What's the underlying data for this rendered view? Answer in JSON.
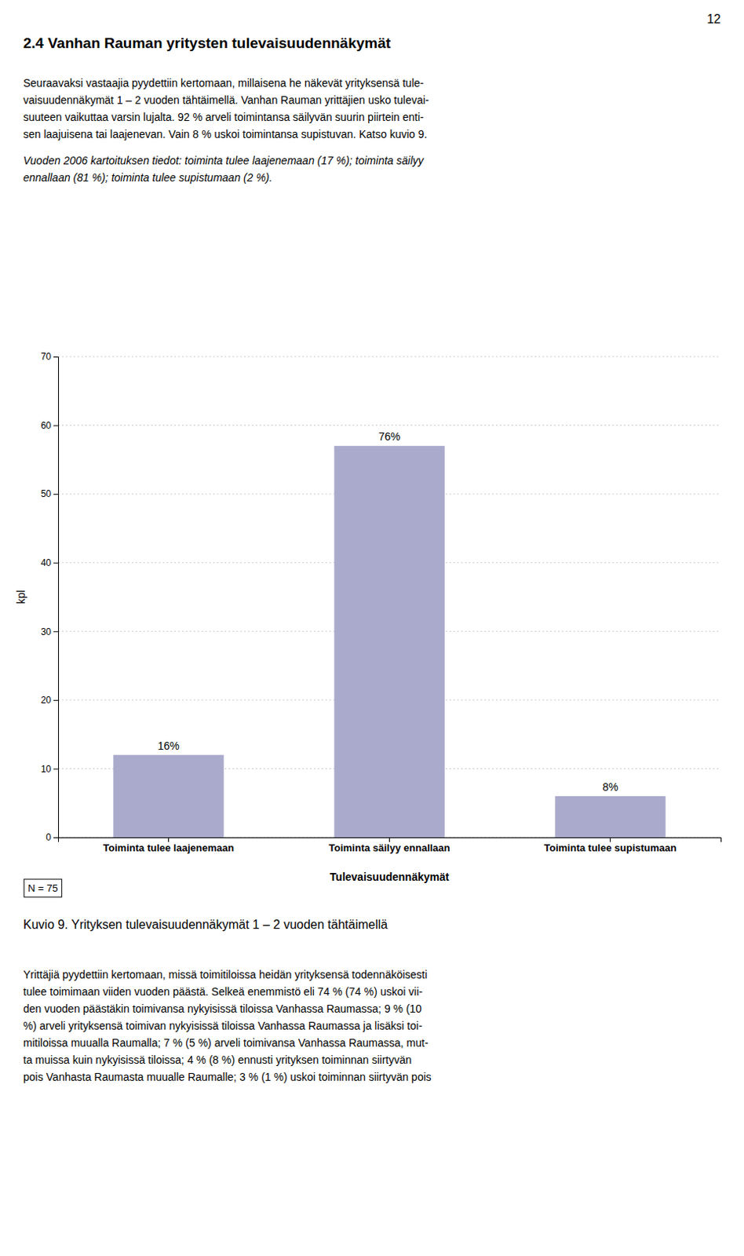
{
  "page_number": "12",
  "section_title": "2.4 Vanhan Rauman yritysten tulevaisuudennäkymät",
  "body1_lines": [
    "Seuraavaksi vastaajia pyydettiin kertomaan, millaisena he näkevät yrityksensä tule-",
    "vaisuudennäkymät 1 – 2 vuoden tähtäimellä. Vanhan Rauman yrittäjien usko tulevai-",
    "suuteen vaikuttaa varsin lujalta. 92 % arveli toimintansa säilyvän suurin piirtein enti-",
    "sen laajuisena tai laajenevan. Vain 8 % uskoi toimintansa supistuvan. Katso kuvio 9."
  ],
  "italic_lines": [
    "Vuoden 2006 kartoituksen tiedot: toiminta tulee laajenemaan (17 %); toiminta säilyy",
    "ennallaan (81 %); toiminta tulee supistumaan (2 %)."
  ],
  "chart_data": {
    "type": "bar",
    "categories": [
      "Toiminta tulee laajenemaan",
      "Toiminta säilyy ennallaan",
      "Toiminta tulee supistumaan"
    ],
    "values": [
      12,
      57,
      6
    ],
    "value_labels": [
      "16%",
      "76%",
      "8%"
    ],
    "data_labels": true,
    "color": "#aaaacc",
    "ylabel": "kpl",
    "xlabel": "Tulevaisuudennäkymät",
    "ylim": [
      0,
      70
    ],
    "yticks": [
      0,
      10,
      20,
      30,
      40,
      50,
      60,
      70
    ],
    "grid": true,
    "annotations": [
      "N = 75"
    ]
  },
  "caption": "Kuvio 9. Yrityksen tulevaisuudennäkymät 1 – 2 vuoden tähtäimellä",
  "body2_lines": [
    "Yrittäjiä pyydettiin kertomaan, missä toimitiloissa heidän yrityksensä todennäköisesti",
    "tulee toimimaan viiden vuoden päästä. Selkeä enemmistö eli 74 % (74 %) uskoi vii-",
    "den vuoden päästäkin toimivansa nykyisissä tiloissa Vanhassa Raumassa; 9 % (10",
    "%) arveli yrityksensä toimivan nykyisissä tiloissa Vanhassa Raumassa ja lisäksi toi-",
    "mitiloissa muualla Raumalla; 7 % (5 %) arveli toimivansa Vanhassa Raumassa, mut-",
    "ta muissa kuin nykyisissä tiloissa; 4 % (8 %) ennusti yrityksen toiminnan siirtyvän",
    "pois Vanhasta Raumasta muualle Raumalle; 3 % (1 %) uskoi toiminnan siirtyvän pois"
  ]
}
